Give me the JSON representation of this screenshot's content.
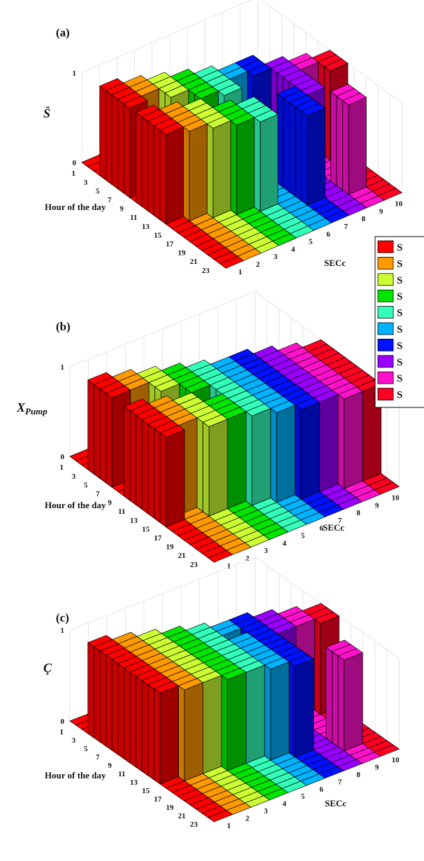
{
  "chart_data": [
    {
      "type": "bar3d",
      "panel_label": "(a)",
      "zlabel": "Ŝ",
      "xlabel": "Hour of the day",
      "ylabel": "SECc",
      "zlim": [
        0,
        1
      ],
      "z_ticks": [
        "0",
        "1"
      ],
      "hour_ticks": [
        "1",
        "3",
        "5",
        "7",
        "9",
        "11",
        "13",
        "15",
        "17",
        "19",
        "21",
        "23"
      ],
      "secc_ticks": [
        "1",
        "2",
        "3",
        "4",
        "5",
        "6",
        "7",
        "8",
        "9",
        "10"
      ],
      "hours": [
        1,
        2,
        3,
        4,
        5,
        6,
        7,
        8,
        9,
        10,
        11,
        12,
        13,
        14,
        15,
        16,
        17,
        18,
        19,
        20,
        21,
        22,
        23,
        24
      ],
      "series": [
        {
          "values": [
            0,
            0,
            0,
            1,
            1,
            1,
            1,
            1,
            0,
            1,
            1,
            1,
            1,
            1,
            0,
            0,
            0,
            0,
            0,
            0,
            0,
            0,
            0,
            0
          ]
        },
        {
          "values": [
            0,
            0,
            0,
            0,
            1,
            1,
            1,
            0,
            0,
            0,
            1,
            1,
            1,
            1,
            1,
            0,
            0,
            0,
            0,
            0,
            0,
            0,
            0,
            0
          ]
        },
        {
          "values": [
            0,
            0,
            0,
            0,
            0,
            1,
            1,
            1,
            1,
            0,
            0,
            1,
            1,
            1,
            1,
            1,
            0,
            0,
            0,
            0,
            0,
            0,
            0,
            0
          ]
        },
        {
          "values": [
            0,
            0,
            0,
            0,
            0,
            0,
            1,
            1,
            1,
            1,
            1,
            0,
            0,
            1,
            1,
            1,
            1,
            0,
            0,
            0,
            0,
            0,
            0,
            0
          ]
        },
        {
          "values": [
            0,
            0,
            0,
            0,
            0,
            0,
            0,
            1,
            1,
            1,
            1,
            1,
            0,
            0,
            1,
            1,
            1,
            1,
            0,
            0,
            0,
            0,
            0,
            0
          ]
        },
        {
          "values": [
            0,
            0,
            0,
            0,
            0,
            0,
            0,
            0,
            1,
            1,
            0,
            0,
            0,
            0,
            0,
            0,
            0,
            0,
            0,
            0,
            0,
            0,
            0,
            0
          ]
        },
        {
          "values": [
            0,
            0,
            0,
            0,
            0,
            0,
            0,
            0,
            1,
            1,
            1,
            0,
            0,
            0,
            0,
            1,
            1,
            1,
            1,
            1,
            0,
            0,
            0,
            0
          ]
        },
        {
          "values": [
            0,
            0,
            0,
            0,
            0,
            0,
            0,
            0,
            0,
            0,
            1,
            1,
            1,
            1,
            1,
            1,
            1,
            0,
            0,
            0,
            0,
            0,
            0,
            0
          ]
        },
        {
          "values": [
            0,
            0,
            0,
            0,
            0,
            0,
            0,
            0,
            0,
            0,
            0,
            1,
            1,
            0,
            0,
            0,
            0,
            0,
            1,
            1,
            1,
            0,
            0,
            0
          ]
        },
        {
          "values": [
            0,
            0,
            0,
            0,
            0,
            0,
            0,
            0,
            0,
            0,
            0,
            0,
            1,
            1,
            1,
            0,
            0,
            0,
            0,
            0,
            0,
            0,
            0,
            0
          ]
        }
      ]
    },
    {
      "type": "bar3d",
      "panel_label": "(b)",
      "zlabel": "XPump",
      "xlabel": "Hour of the day",
      "ylabel": "SECc",
      "zlim": [
        0,
        1
      ],
      "z_ticks": [
        "0",
        "1"
      ],
      "hour_ticks": [
        "1",
        "3",
        "5",
        "7",
        "9",
        "11",
        "13",
        "15",
        "17",
        "19",
        "21",
        "23"
      ],
      "secc_ticks": [
        "1",
        "2",
        "3",
        "4",
        "5",
        "6",
        "7",
        "8",
        "9",
        "10"
      ],
      "hours": [
        1,
        2,
        3,
        4,
        5,
        6,
        7,
        8,
        9,
        10,
        11,
        12,
        13,
        14,
        15,
        16,
        17,
        18,
        19,
        20,
        21,
        22,
        23,
        24
      ],
      "series": [
        {
          "values": [
            0,
            0,
            0,
            1,
            1,
            1,
            1,
            0,
            0,
            1,
            1,
            1,
            1,
            1,
            1,
            1,
            0,
            0,
            0,
            0,
            0,
            0,
            0,
            0
          ]
        },
        {
          "values": [
            0,
            0,
            0,
            0,
            1,
            1,
            1,
            0,
            0,
            0,
            1,
            1,
            1,
            1,
            1,
            0,
            0,
            0,
            0,
            0,
            0,
            0,
            0,
            0
          ]
        },
        {
          "values": [
            0,
            0,
            0,
            0,
            0,
            1,
            1,
            1,
            1,
            0,
            0,
            1,
            1,
            1,
            1,
            1,
            1,
            0,
            0,
            0,
            0,
            0,
            0,
            0
          ]
        },
        {
          "values": [
            0,
            0,
            0,
            0,
            0,
            0,
            1,
            1,
            1,
            1,
            1,
            0,
            0,
            1,
            1,
            1,
            1,
            0,
            0,
            0,
            0,
            0,
            0,
            0
          ]
        },
        {
          "values": [
            0,
            0,
            0,
            0,
            0,
            0,
            0,
            1,
            1,
            1,
            1,
            1,
            1,
            1,
            1,
            1,
            1,
            1,
            0,
            0,
            0,
            0,
            0,
            0
          ]
        },
        {
          "values": [
            0,
            0,
            0,
            0,
            0,
            0,
            0,
            0,
            1,
            1,
            1,
            1,
            1,
            1,
            1,
            1,
            1,
            1,
            1,
            0,
            0,
            0,
            0,
            0
          ]
        },
        {
          "values": [
            0,
            0,
            0,
            0,
            0,
            0,
            0,
            0,
            1,
            1,
            1,
            1,
            1,
            1,
            1,
            1,
            1,
            1,
            1,
            1,
            0,
            0,
            0,
            0
          ]
        },
        {
          "values": [
            0,
            0,
            0,
            0,
            0,
            0,
            0,
            0,
            0,
            1,
            1,
            1,
            1,
            1,
            1,
            1,
            1,
            1,
            1,
            1,
            0,
            0,
            0,
            0
          ]
        },
        {
          "values": [
            0,
            0,
            0,
            0,
            0,
            0,
            0,
            0,
            0,
            0,
            1,
            1,
            1,
            1,
            1,
            1,
            1,
            1,
            1,
            1,
            1,
            0,
            0,
            0
          ]
        },
        {
          "values": [
            0,
            0,
            0,
            0,
            0,
            0,
            0,
            0,
            0,
            0,
            0,
            1,
            1,
            1,
            1,
            1,
            1,
            1,
            1,
            1,
            1,
            0,
            0,
            0
          ]
        }
      ]
    },
    {
      "type": "bar3d",
      "panel_label": "(c)",
      "zlabel": "Ç",
      "xlabel": "Hour of the day",
      "ylabel": "SECc",
      "zlim": [
        0,
        1
      ],
      "z_ticks": [
        "0",
        "1"
      ],
      "hour_ticks": [
        "1",
        "3",
        "5",
        "7",
        "9",
        "11",
        "13",
        "15",
        "17",
        "19",
        "21",
        "23"
      ],
      "secc_ticks": [
        "1",
        "2",
        "3",
        "4",
        "5",
        "6",
        "7",
        "8",
        "9",
        "10"
      ],
      "hours": [
        1,
        2,
        3,
        4,
        5,
        6,
        7,
        8,
        9,
        10,
        11,
        12,
        13,
        14,
        15,
        16,
        17,
        18,
        19,
        20,
        21,
        22,
        23,
        24
      ],
      "series": [
        {
          "values": [
            0,
            0,
            0,
            1,
            1,
            1,
            1,
            1,
            1,
            1,
            1,
            1,
            1,
            1,
            1,
            0,
            0,
            0,
            0,
            0,
            0,
            0,
            0,
            0
          ]
        },
        {
          "values": [
            0,
            0,
            0,
            0,
            1,
            1,
            1,
            1,
            1,
            1,
            1,
            1,
            1,
            1,
            1,
            1,
            0,
            0,
            0,
            0,
            0,
            0,
            0,
            0
          ]
        },
        {
          "values": [
            0,
            0,
            0,
            0,
            0,
            1,
            1,
            1,
            1,
            1,
            1,
            1,
            1,
            1,
            1,
            1,
            0,
            0,
            0,
            0,
            0,
            0,
            0,
            0
          ]
        },
        {
          "values": [
            0,
            0,
            0,
            0,
            0,
            0,
            1,
            1,
            1,
            1,
            1,
            1,
            1,
            1,
            1,
            1,
            1,
            0,
            0,
            0,
            0,
            0,
            0,
            0
          ]
        },
        {
          "values": [
            0,
            0,
            0,
            0,
            0,
            0,
            0,
            1,
            1,
            1,
            1,
            1,
            1,
            1,
            1,
            1,
            1,
            0,
            0,
            0,
            0,
            0,
            0,
            0
          ]
        },
        {
          "values": [
            0,
            0,
            0,
            0,
            0,
            0,
            0,
            0,
            1,
            1,
            0,
            1,
            1,
            1,
            1,
            1,
            1,
            1,
            0,
            0,
            0,
            0,
            0,
            0
          ]
        },
        {
          "values": [
            0,
            0,
            0,
            0,
            0,
            0,
            0,
            0,
            1,
            1,
            1,
            1,
            1,
            1,
            1,
            1,
            1,
            1,
            1,
            0,
            0,
            0,
            0,
            0
          ]
        },
        {
          "values": [
            0,
            0,
            0,
            0,
            0,
            0,
            0,
            0,
            0,
            1,
            1,
            1,
            1,
            0,
            0,
            0,
            0,
            0,
            0,
            0,
            0,
            0,
            0,
            0
          ]
        },
        {
          "values": [
            0,
            0,
            0,
            0,
            0,
            0,
            0,
            0,
            0,
            0,
            1,
            1,
            1,
            0,
            0,
            0,
            0,
            0,
            1,
            1,
            1,
            0,
            0,
            0
          ]
        },
        {
          "values": [
            0,
            0,
            0,
            0,
            0,
            0,
            0,
            0,
            0,
            0,
            0,
            1,
            1,
            1,
            0,
            0,
            0,
            0,
            0,
            0,
            0,
            0,
            0,
            0
          ]
        }
      ]
    }
  ],
  "legend": {
    "entries": [
      "S",
      "S",
      "S",
      "S",
      "S",
      "S",
      "S",
      "S",
      "S",
      "S"
    ],
    "colors": [
      "#ff0000",
      "#ff9900",
      "#ccff33",
      "#00e600",
      "#33ffbb",
      "#00b3ff",
      "#0011ff",
      "#9900ff",
      "#ff11cc",
      "#ff0022"
    ]
  },
  "colors": {
    "series": [
      "#ff0000",
      "#ff9900",
      "#ccff33",
      "#00e600",
      "#33ffbb",
      "#00b3ff",
      "#0011ff",
      "#9900ff",
      "#ff11cc",
      "#ff0022"
    ],
    "grid": "#dedede",
    "edge": "#000000"
  }
}
